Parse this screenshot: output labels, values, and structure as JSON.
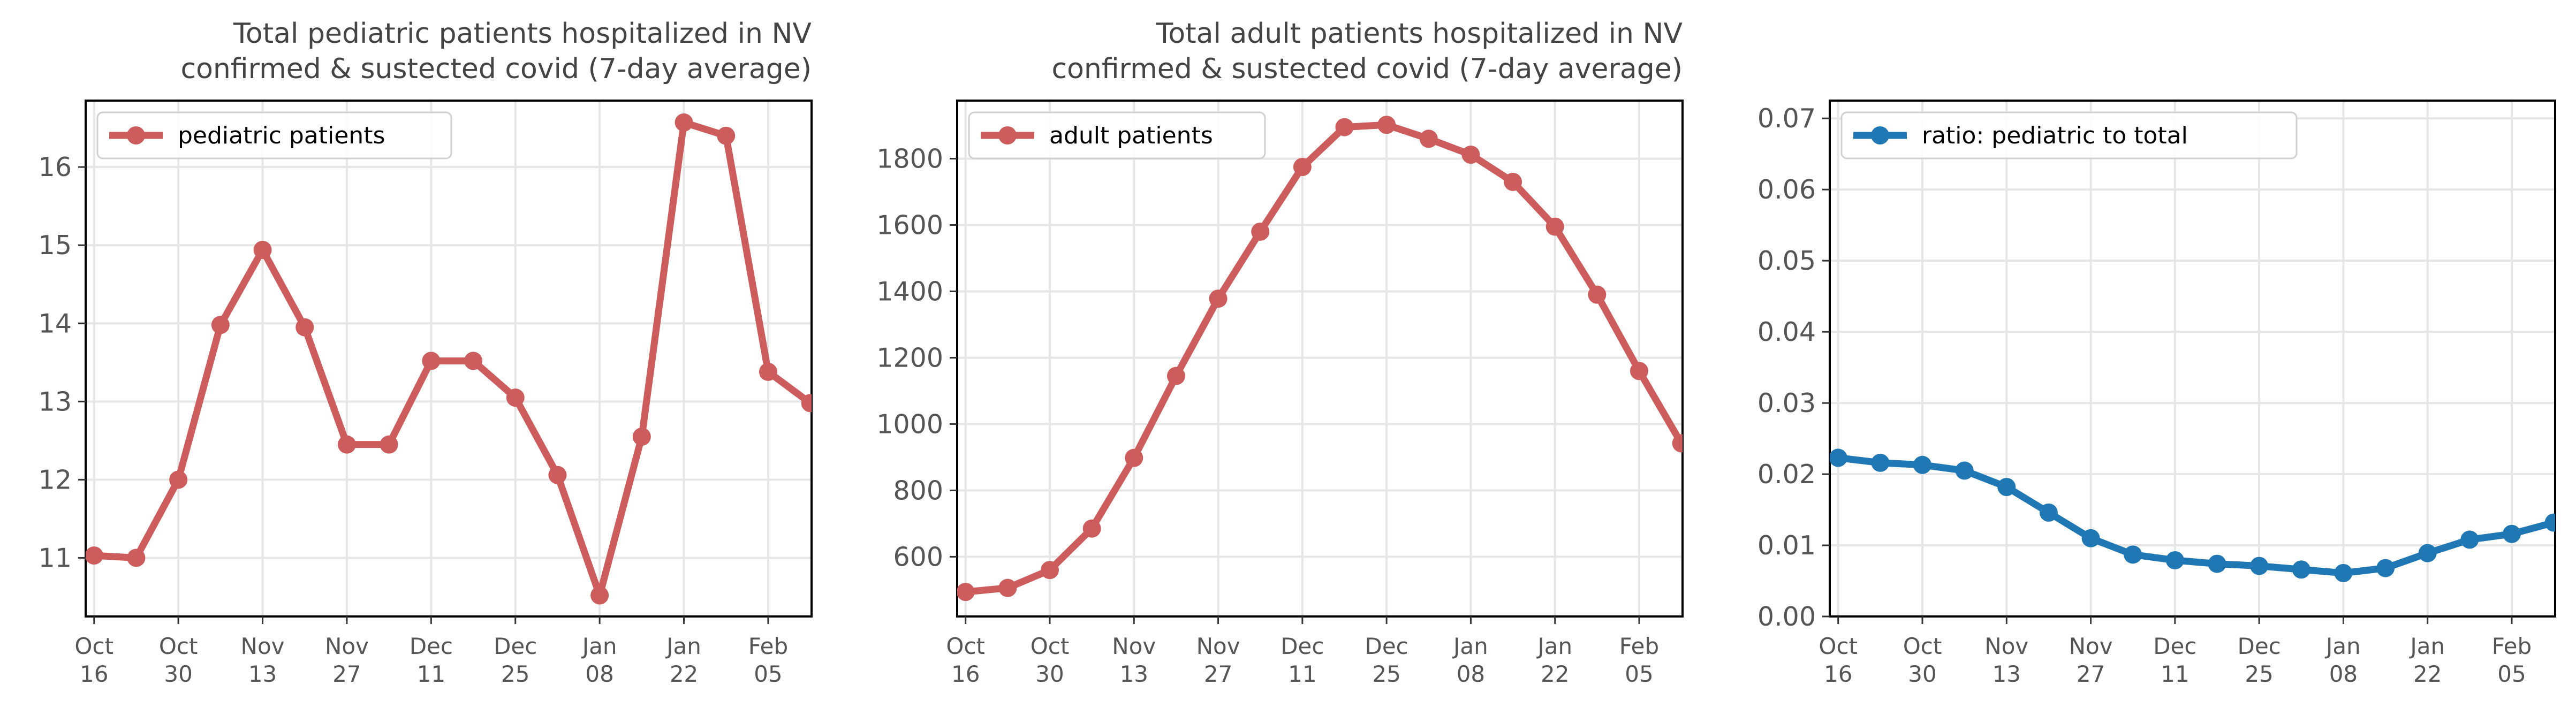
{
  "chart_data": [
    {
      "type": "line",
      "title_lines": [
        "Total pediatric patients hospitalized in NV",
        "confirmed & sustected covid (7-day average)"
      ],
      "xlabel": "",
      "ylabel": "",
      "x_tick_labels": [
        [
          "Oct",
          "16"
        ],
        [
          "Oct",
          "30"
        ],
        [
          "Nov",
          "13"
        ],
        [
          "Nov",
          "27"
        ],
        [
          "Dec",
          "11"
        ],
        [
          "Dec",
          "25"
        ],
        [
          "Jan",
          "08"
        ],
        [
          "Jan",
          "22"
        ],
        [
          "Feb",
          "05"
        ]
      ],
      "y_ticks": [
        11,
        12,
        13,
        14,
        15,
        16
      ],
      "y_tick_labels": [
        "11",
        "12",
        "13",
        "14",
        "15",
        "16"
      ],
      "ylim": [
        10.25,
        16.85
      ],
      "grid": true,
      "legend_position": "top-left",
      "series": [
        {
          "name": "pediatric patients",
          "color": "#cd5c5c",
          "x": [
            "2020-10-16",
            "2020-10-23",
            "2020-10-30",
            "2020-11-06",
            "2020-11-13",
            "2020-11-20",
            "2020-11-27",
            "2020-12-04",
            "2020-12-11",
            "2020-12-18",
            "2020-12-25",
            "2021-01-01",
            "2021-01-08",
            "2021-01-15",
            "2021-01-22",
            "2021-01-29",
            "2021-02-05",
            "2021-02-12"
          ],
          "y": [
            11.03,
            11.0,
            12.0,
            13.98,
            14.94,
            13.95,
            12.45,
            12.45,
            13.52,
            13.52,
            13.05,
            12.06,
            10.52,
            12.55,
            16.57,
            16.4,
            13.38,
            12.98
          ]
        }
      ]
    },
    {
      "type": "line",
      "title_lines": [
        "Total adult patients hospitalized in NV",
        "confirmed & sustected covid (7-day average)"
      ],
      "xlabel": "",
      "ylabel": "",
      "x_tick_labels": [
        [
          "Oct",
          "16"
        ],
        [
          "Oct",
          "30"
        ],
        [
          "Nov",
          "13"
        ],
        [
          "Nov",
          "27"
        ],
        [
          "Dec",
          "11"
        ],
        [
          "Dec",
          "25"
        ],
        [
          "Jan",
          "08"
        ],
        [
          "Jan",
          "22"
        ],
        [
          "Feb",
          "05"
        ]
      ],
      "y_ticks": [
        600,
        800,
        1000,
        1200,
        1400,
        1600,
        1800
      ],
      "y_tick_labels": [
        "600",
        "800",
        "1000",
        "1200",
        "1400",
        "1600",
        "1800"
      ],
      "ylim": [
        420,
        1975
      ],
      "grid": true,
      "legend_position": "top-left",
      "series": [
        {
          "name": "adult patients",
          "color": "#cd5c5c",
          "x": [
            "2020-10-16",
            "2020-10-23",
            "2020-10-30",
            "2020-11-06",
            "2020-11-13",
            "2020-11-20",
            "2020-11-27",
            "2020-12-04",
            "2020-12-11",
            "2020-12-18",
            "2020-12-25",
            "2021-01-01",
            "2021-01-08",
            "2021-01-15",
            "2021-01-22",
            "2021-01-29",
            "2021-02-05",
            "2021-02-12"
          ],
          "y": [
            494,
            506,
            560,
            685,
            898,
            1145,
            1378,
            1580,
            1775,
            1895,
            1902,
            1860,
            1812,
            1730,
            1595,
            1390,
            1160,
            942
          ]
        }
      ]
    },
    {
      "type": "line",
      "title_lines": [],
      "xlabel": "",
      "ylabel": "",
      "x_tick_labels": [
        [
          "Oct",
          "16"
        ],
        [
          "Oct",
          "30"
        ],
        [
          "Nov",
          "13"
        ],
        [
          "Nov",
          "27"
        ],
        [
          "Dec",
          "11"
        ],
        [
          "Dec",
          "25"
        ],
        [
          "Jan",
          "08"
        ],
        [
          "Jan",
          "22"
        ],
        [
          "Feb",
          "05"
        ]
      ],
      "y_ticks": [
        0,
        0.01,
        0.02,
        0.03,
        0.04,
        0.05,
        0.06,
        0.07
      ],
      "y_tick_labels": [
        "0.00",
        "0.01",
        "0.02",
        "0.03",
        "0.04",
        "0.05",
        "0.06",
        "0.07"
      ],
      "ylim": [
        0,
        0.0725
      ],
      "grid": true,
      "legend_position": "top-left",
      "series": [
        {
          "name": "ratio: pediatric to total",
          "color": "#1f77b4",
          "x": [
            "2020-10-16",
            "2020-10-23",
            "2020-10-30",
            "2020-11-06",
            "2020-11-13",
            "2020-11-20",
            "2020-11-27",
            "2020-12-04",
            "2020-12-11",
            "2020-12-18",
            "2020-12-25",
            "2021-01-01",
            "2021-01-08",
            "2021-01-15",
            "2021-01-22",
            "2021-01-29",
            "2021-02-05",
            "2021-02-12"
          ],
          "y": [
            0.0223,
            0.0216,
            0.0213,
            0.0205,
            0.0182,
            0.0146,
            0.011,
            0.0087,
            0.0079,
            0.0074,
            0.0071,
            0.0066,
            0.0061,
            0.0068,
            0.0089,
            0.0108,
            0.0116,
            0.0132
          ]
        }
      ]
    }
  ]
}
